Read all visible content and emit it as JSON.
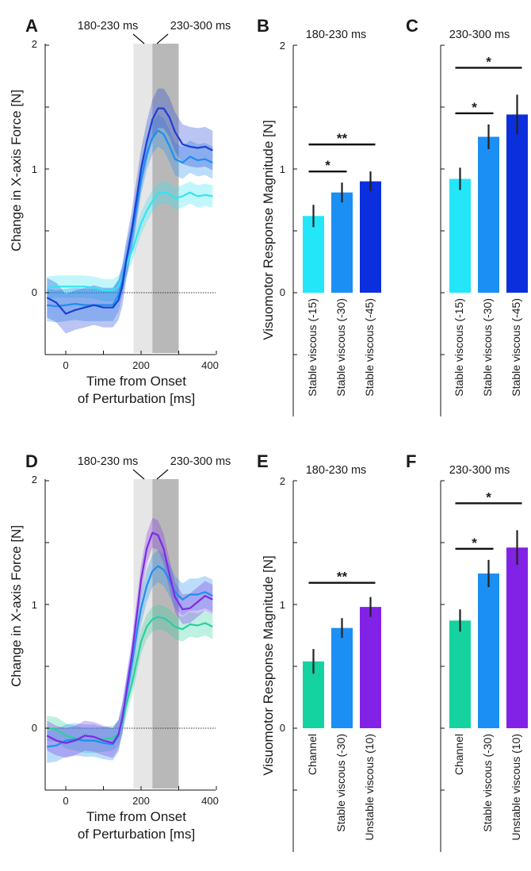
{
  "chart_data": [
    {
      "panel": "A",
      "type": "line",
      "xlabel": "Time from Onset",
      "xlabel2": "of Perturbation [ms]",
      "ylabel": "Change in X-axis Force [N]",
      "xlim": [
        -50,
        400
      ],
      "ylim": [
        -0.5,
        2
      ],
      "xticks": [
        "0",
        "200",
        "400"
      ],
      "yticks": [
        "0",
        "1",
        "2"
      ],
      "windows": [
        {
          "label": "180-230 ms",
          "range": [
            180,
            230
          ],
          "color": "#e6e6e6"
        },
        {
          "label": "230-300 ms",
          "range": [
            230,
            300
          ],
          "color": "#b9b8b9"
        }
      ],
      "series": [
        {
          "color": "#31e6f2",
          "band": 0.09,
          "x": [
            -50,
            -25,
            0,
            25,
            50,
            75,
            100,
            125,
            140,
            150,
            160,
            175,
            190,
            200,
            215,
            230,
            245,
            260,
            275,
            290,
            310,
            330,
            350,
            370,
            390
          ],
          "y": [
            0.04,
            0.05,
            0.05,
            0.05,
            0.05,
            0.04,
            0.02,
            0.02,
            0.05,
            0.12,
            0.22,
            0.33,
            0.47,
            0.56,
            0.66,
            0.74,
            0.8,
            0.81,
            0.8,
            0.76,
            0.78,
            0.81,
            0.78,
            0.79,
            0.78
          ]
        },
        {
          "color": "#1d8ff0",
          "band": 0.13,
          "x": [
            -50,
            -25,
            0,
            25,
            50,
            75,
            100,
            125,
            140,
            150,
            160,
            175,
            190,
            200,
            215,
            230,
            245,
            260,
            275,
            290,
            310,
            330,
            350,
            370,
            390
          ],
          "y": [
            -0.1,
            -0.11,
            -0.1,
            -0.09,
            -0.1,
            -0.1,
            -0.1,
            -0.1,
            -0.02,
            0.1,
            0.25,
            0.45,
            0.72,
            0.92,
            1.12,
            1.25,
            1.31,
            1.28,
            1.19,
            1.08,
            1.05,
            1.1,
            1.07,
            1.08,
            1.05
          ]
        },
        {
          "color": "#1c3fd6",
          "band": 0.16,
          "x": [
            -50,
            -25,
            0,
            25,
            50,
            75,
            100,
            125,
            140,
            150,
            160,
            175,
            190,
            200,
            215,
            230,
            245,
            260,
            275,
            290,
            310,
            330,
            350,
            370,
            390
          ],
          "y": [
            -0.04,
            -0.08,
            -0.17,
            -0.14,
            -0.12,
            -0.1,
            -0.12,
            -0.12,
            -0.06,
            0.05,
            0.25,
            0.5,
            0.8,
            1.0,
            1.22,
            1.4,
            1.49,
            1.49,
            1.42,
            1.3,
            1.2,
            1.18,
            1.17,
            1.18,
            1.15
          ]
        }
      ]
    },
    {
      "panel": "B",
      "type": "bar",
      "title": "180-230 ms",
      "ylabel": "Visuomotor Response Magnitude [N]",
      "ylim": [
        -0.5,
        2
      ],
      "yticks": [
        "0",
        "1",
        "2"
      ],
      "categories": [
        "Stable viscous (-15)",
        "Stable viscous (-30)",
        "Stable viscous (-45)"
      ],
      "values": [
        0.62,
        0.81,
        0.9
      ],
      "errors": [
        0.09,
        0.08,
        0.08
      ],
      "colors": [
        "#23e6f9",
        "#1b8ff3",
        "#0b2fdd"
      ],
      "significance": [
        {
          "from": 0,
          "to": 1,
          "label": "*"
        },
        {
          "from": 0,
          "to": 2,
          "label": "**"
        }
      ]
    },
    {
      "panel": "C",
      "type": "bar",
      "title": "230-300 ms",
      "ylim": [
        -0.5,
        2
      ],
      "categories": [
        "Stable viscous (-15)",
        "Stable viscous (-30)",
        "Stable viscous (-45)"
      ],
      "values": [
        0.92,
        1.26,
        1.44
      ],
      "errors": [
        0.09,
        0.1,
        0.16
      ],
      "colors": [
        "#23e6f9",
        "#1b8ff3",
        "#0b2fdd"
      ],
      "significance": [
        {
          "from": 0,
          "to": 1,
          "label": "*"
        },
        {
          "from": 0,
          "to": 2,
          "label": "*"
        }
      ]
    },
    {
      "panel": "D",
      "type": "line",
      "xlabel": "Time from Onset",
      "xlabel2": "of Perturbation [ms]",
      "ylabel": "Change in X-axis Force [N]",
      "xlim": [
        -50,
        400
      ],
      "ylim": [
        -0.5,
        2
      ],
      "xticks": [
        "0",
        "200",
        "400"
      ],
      "yticks": [
        "0",
        "1",
        "2"
      ],
      "windows": [
        {
          "label": "180-230 ms",
          "range": [
            180,
            230
          ],
          "color": "#e6e6e6"
        },
        {
          "label": "230-300 ms",
          "range": [
            230,
            300
          ],
          "color": "#b9b8b9"
        }
      ],
      "series": [
        {
          "color": "#2ccf9f",
          "band": 0.1,
          "x": [
            -50,
            -25,
            0,
            25,
            50,
            75,
            100,
            125,
            140,
            150,
            160,
            175,
            190,
            200,
            215,
            230,
            245,
            260,
            275,
            290,
            310,
            330,
            350,
            370,
            390
          ],
          "y": [
            0.0,
            -0.01,
            -0.06,
            -0.08,
            -0.1,
            -0.1,
            -0.09,
            -0.08,
            -0.04,
            0.05,
            0.18,
            0.35,
            0.56,
            0.7,
            0.82,
            0.88,
            0.9,
            0.89,
            0.86,
            0.82,
            0.8,
            0.84,
            0.83,
            0.85,
            0.82
          ]
        },
        {
          "color": "#1d8ff0",
          "band": 0.13,
          "x": [
            -50,
            -25,
            0,
            25,
            50,
            75,
            100,
            125,
            140,
            150,
            160,
            175,
            190,
            200,
            215,
            230,
            245,
            260,
            275,
            290,
            310,
            330,
            350,
            370,
            390
          ],
          "y": [
            -0.15,
            -0.14,
            -0.1,
            -0.09,
            -0.1,
            -0.1,
            -0.12,
            -0.13,
            -0.06,
            0.08,
            0.26,
            0.5,
            0.8,
            0.97,
            1.15,
            1.27,
            1.31,
            1.28,
            1.2,
            1.1,
            1.04,
            1.08,
            1.08,
            1.1,
            1.07
          ]
        },
        {
          "color": "#7b2be6",
          "band": 0.12,
          "x": [
            -50,
            -25,
            0,
            25,
            50,
            75,
            100,
            125,
            140,
            150,
            160,
            175,
            190,
            200,
            215,
            230,
            245,
            260,
            275,
            290,
            310,
            330,
            350,
            370,
            390
          ],
          "y": [
            -0.06,
            -0.1,
            -0.12,
            -0.1,
            -0.06,
            -0.07,
            -0.1,
            -0.12,
            -0.05,
            0.08,
            0.28,
            0.58,
            0.95,
            1.2,
            1.45,
            1.58,
            1.56,
            1.45,
            1.25,
            1.06,
            0.96,
            0.97,
            1.02,
            1.07,
            1.04
          ]
        }
      ]
    },
    {
      "panel": "E",
      "type": "bar",
      "title": "180-230 ms",
      "ylabel": "Visuomotor Response Magnitude [N]",
      "ylim": [
        -0.5,
        2
      ],
      "yticks": [
        "0",
        "1",
        "2"
      ],
      "categories": [
        "Channel",
        "Stable viscous (-30)",
        "Unstable viscous (10)"
      ],
      "values": [
        0.54,
        0.81,
        0.98
      ],
      "errors": [
        0.1,
        0.08,
        0.08
      ],
      "colors": [
        "#15d3a1",
        "#1b8ff3",
        "#8222e6"
      ],
      "significance": [
        {
          "from": 0,
          "to": 2,
          "label": "**"
        }
      ]
    },
    {
      "panel": "F",
      "type": "bar",
      "title": "230-300 ms",
      "ylim": [
        -0.5,
        2
      ],
      "categories": [
        "Channel",
        "Stable viscous (-30)",
        "Unstable viscous (10)"
      ],
      "values": [
        0.87,
        1.25,
        1.46
      ],
      "errors": [
        0.09,
        0.11,
        0.14
      ],
      "colors": [
        "#15d3a1",
        "#1b8ff3",
        "#8222e6"
      ],
      "significance": [
        {
          "from": 0,
          "to": 1,
          "label": "*"
        },
        {
          "from": 0,
          "to": 2,
          "label": "*"
        }
      ]
    }
  ]
}
